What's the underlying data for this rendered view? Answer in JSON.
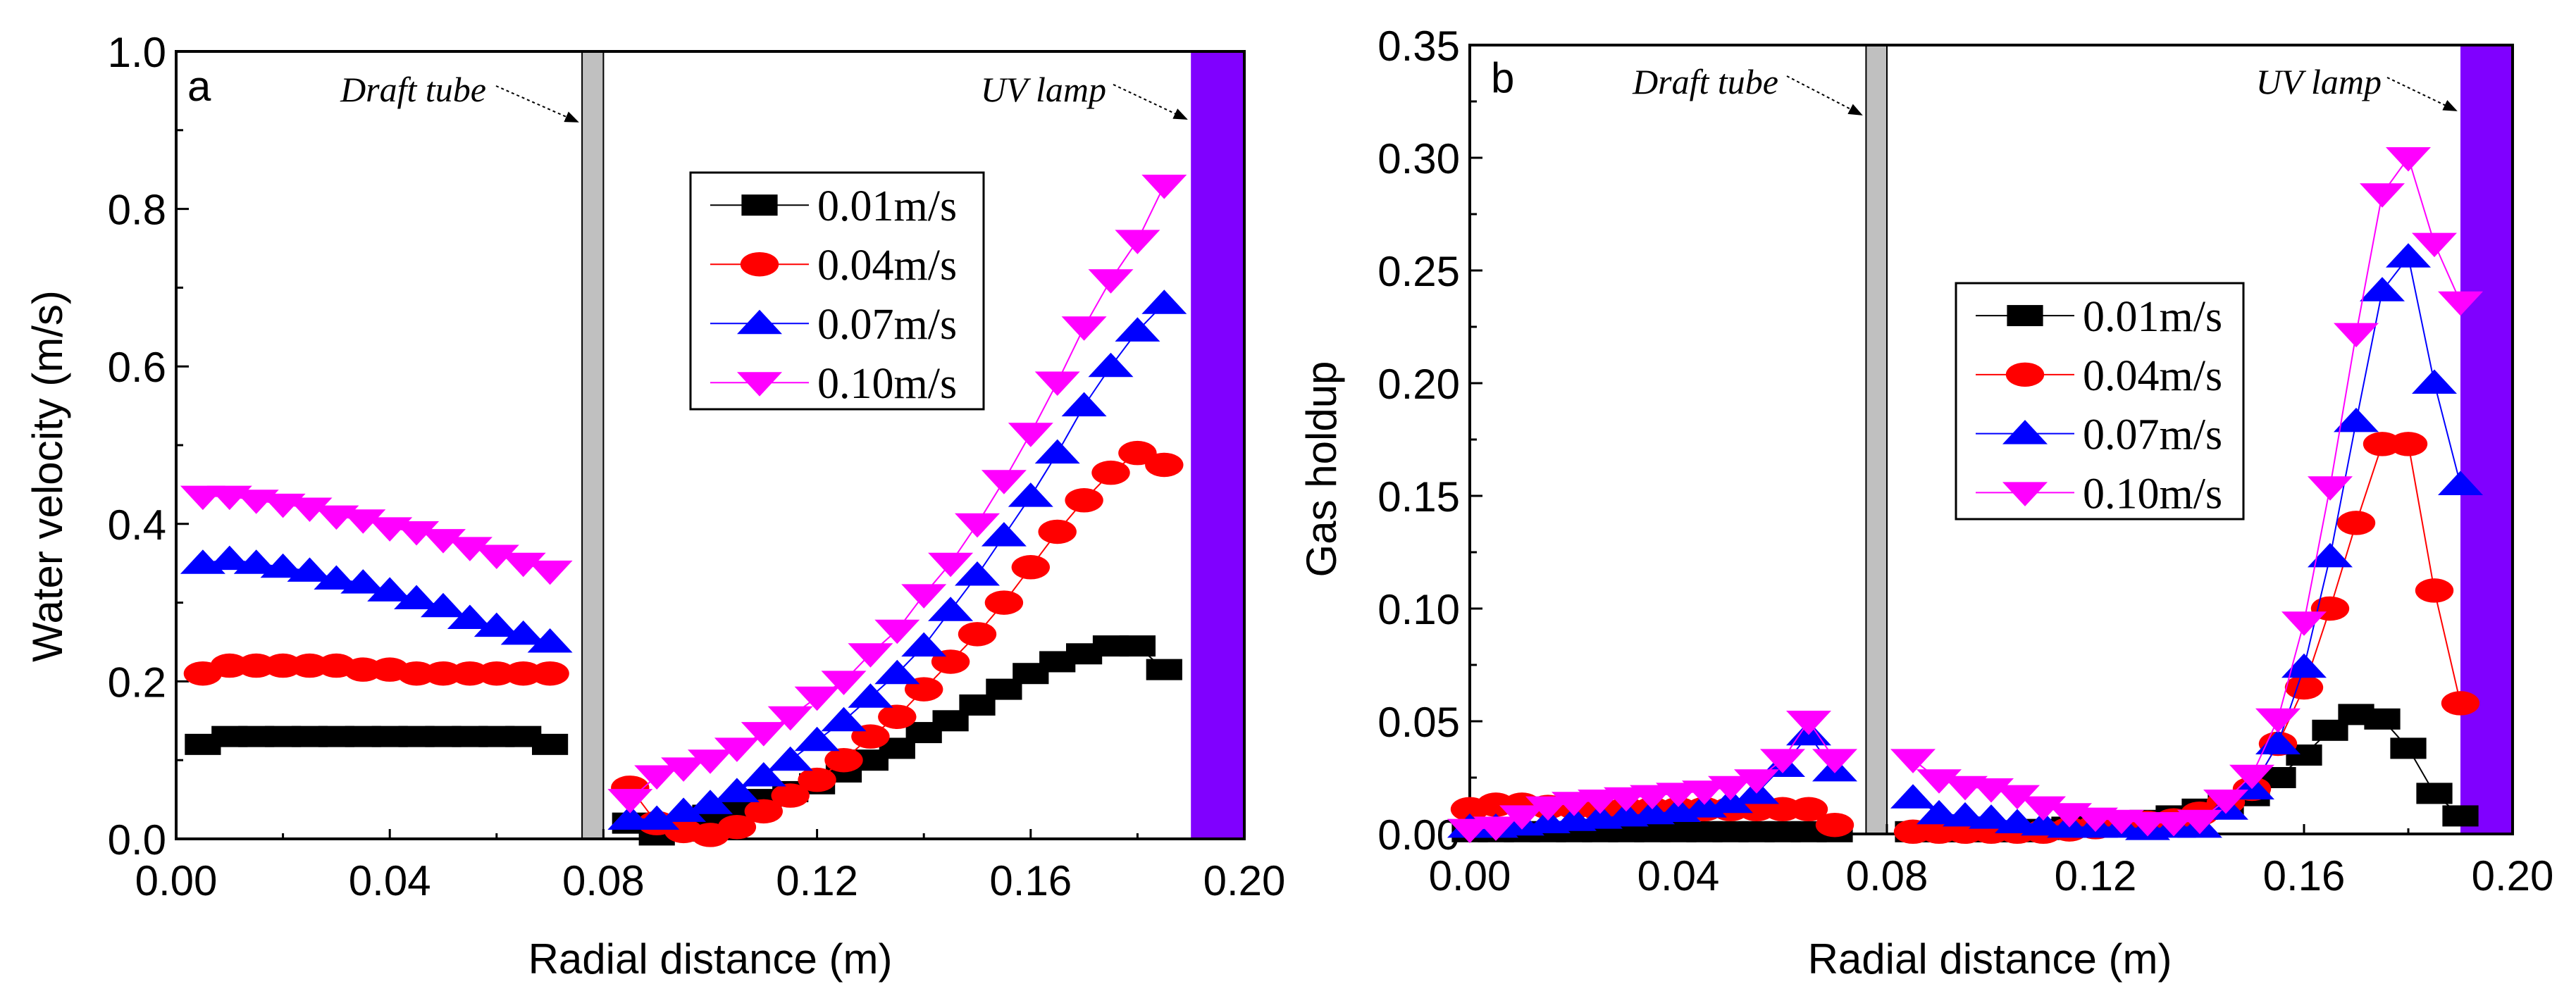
{
  "chart_data": [
    {
      "type": "scatter",
      "panel_label": "a",
      "xlabel": "Radial distance (m)",
      "ylabel": "Water velocity (m/s)",
      "xlim": [
        0,
        0.2
      ],
      "ylim": [
        0,
        1.0
      ],
      "xticks": [
        "0.00",
        "0.04",
        "0.08",
        "0.12",
        "0.16",
        "0.20"
      ],
      "yticks": [
        "0.0",
        "0.2",
        "0.4",
        "0.6",
        "0.8",
        "1.0"
      ],
      "annotations": [
        "Draft tube",
        "UV lamp"
      ],
      "draft_tube": [
        0.076,
        0.08
      ],
      "uv_lamp": [
        0.19,
        0.2
      ],
      "legend_position": "upper-center",
      "series": [
        {
          "name": "0.01m/s",
          "color": "#000000",
          "marker": "square",
          "segments": [
            {
              "x": [
                0.005,
                0.01,
                0.015,
                0.02,
                0.025,
                0.03,
                0.035,
                0.04,
                0.045,
                0.05,
                0.055,
                0.06,
                0.065,
                0.07
              ],
              "y": [
                0.12,
                0.13,
                0.13,
                0.13,
                0.13,
                0.13,
                0.13,
                0.13,
                0.13,
                0.13,
                0.13,
                0.13,
                0.13,
                0.12
              ]
            },
            {
              "x": [
                0.085,
                0.09,
                0.095,
                0.1,
                0.105,
                0.11,
                0.115,
                0.12,
                0.125,
                0.13,
                0.135,
                0.14,
                0.145,
                0.15,
                0.155,
                0.16,
                0.165,
                0.17,
                0.175,
                0.18,
                0.185
              ],
              "y": [
                0.02,
                0.005,
                0.01,
                0.03,
                0.04,
                0.05,
                0.06,
                0.07,
                0.085,
                0.1,
                0.115,
                0.135,
                0.15,
                0.17,
                0.19,
                0.21,
                0.225,
                0.235,
                0.245,
                0.245,
                0.215
              ]
            }
          ]
        },
        {
          "name": "0.04m/s",
          "color": "#ff0000",
          "marker": "circle",
          "segments": [
            {
              "x": [
                0.005,
                0.01,
                0.015,
                0.02,
                0.025,
                0.03,
                0.035,
                0.04,
                0.045,
                0.05,
                0.055,
                0.06,
                0.065,
                0.07
              ],
              "y": [
                0.21,
                0.22,
                0.22,
                0.22,
                0.22,
                0.22,
                0.215,
                0.215,
                0.21,
                0.21,
                0.21,
                0.21,
                0.21,
                0.21
              ]
            },
            {
              "x": [
                0.085,
                0.09,
                0.095,
                0.1,
                0.105,
                0.11,
                0.115,
                0.12,
                0.125,
                0.13,
                0.135,
                0.14,
                0.145,
                0.15,
                0.155,
                0.16,
                0.165,
                0.17,
                0.175,
                0.18,
                0.185
              ],
              "y": [
                0.065,
                0.02,
                0.01,
                0.005,
                0.015,
                0.035,
                0.055,
                0.075,
                0.1,
                0.13,
                0.155,
                0.19,
                0.225,
                0.26,
                0.3,
                0.345,
                0.39,
                0.43,
                0.465,
                0.49,
                0.475
              ]
            }
          ]
        },
        {
          "name": "0.07m/s",
          "color": "#0000ff",
          "marker": "triangle-up",
          "segments": [
            {
              "x": [
                0.005,
                0.01,
                0.015,
                0.02,
                0.025,
                0.03,
                0.035,
                0.04,
                0.045,
                0.05,
                0.055,
                0.06,
                0.065,
                0.07
              ],
              "y": [
                0.35,
                0.355,
                0.35,
                0.345,
                0.34,
                0.33,
                0.325,
                0.315,
                0.305,
                0.295,
                0.28,
                0.27,
                0.26,
                0.25
              ]
            },
            {
              "x": [
                0.085,
                0.09,
                0.095,
                0.1,
                0.105,
                0.11,
                0.115,
                0.12,
                0.125,
                0.13,
                0.135,
                0.14,
                0.145,
                0.15,
                0.155,
                0.16,
                0.165,
                0.17,
                0.175,
                0.18,
                0.185
              ],
              "y": [
                0.025,
                0.025,
                0.035,
                0.045,
                0.06,
                0.08,
                0.1,
                0.125,
                0.15,
                0.18,
                0.21,
                0.245,
                0.29,
                0.335,
                0.385,
                0.435,
                0.49,
                0.55,
                0.6,
                0.645,
                0.68
              ]
            }
          ]
        },
        {
          "name": "0.10m/s",
          "color": "#ff00ff",
          "marker": "triangle-down",
          "segments": [
            {
              "x": [
                0.005,
                0.01,
                0.015,
                0.02,
                0.025,
                0.03,
                0.035,
                0.04,
                0.045,
                0.05,
                0.055,
                0.06,
                0.065,
                0.07
              ],
              "y": [
                0.435,
                0.435,
                0.43,
                0.425,
                0.42,
                0.41,
                0.405,
                0.395,
                0.39,
                0.38,
                0.37,
                0.36,
                0.35,
                0.34
              ]
            },
            {
              "x": [
                0.085,
                0.09,
                0.095,
                0.1,
                0.105,
                0.11,
                0.115,
                0.12,
                0.125,
                0.13,
                0.135,
                0.14,
                0.145,
                0.15,
                0.155,
                0.16,
                0.165,
                0.17,
                0.175,
                0.18,
                0.185
              ],
              "y": [
                0.05,
                0.08,
                0.09,
                0.1,
                0.115,
                0.135,
                0.155,
                0.18,
                0.2,
                0.235,
                0.265,
                0.31,
                0.35,
                0.4,
                0.455,
                0.515,
                0.58,
                0.65,
                0.71,
                0.76,
                0.83
              ]
            }
          ]
        }
      ]
    },
    {
      "type": "scatter",
      "panel_label": "b",
      "xlabel": "Radial distance (m)",
      "ylabel": "Gas holdup",
      "xlim": [
        0,
        0.2
      ],
      "ylim": [
        0,
        0.35
      ],
      "xticks": [
        "0.00",
        "0.04",
        "0.08",
        "0.12",
        "0.16",
        "0.20"
      ],
      "yticks": [
        "0.00",
        "0.05",
        "0.10",
        "0.15",
        "0.20",
        "0.25",
        "0.30",
        "0.35"
      ],
      "annotations": [
        "Draft tube",
        "UV lamp"
      ],
      "draft_tube": [
        0.076,
        0.08
      ],
      "uv_lamp": [
        0.19,
        0.2
      ],
      "legend_position": "center-right",
      "series": [
        {
          "name": "0.01m/s",
          "color": "#000000",
          "marker": "square",
          "segments": [
            {
              "x": [
                0,
                0.005,
                0.01,
                0.015,
                0.02,
                0.025,
                0.03,
                0.035,
                0.04,
                0.045,
                0.05,
                0.055,
                0.06,
                0.065,
                0.07
              ],
              "y": [
                0.001,
                0.001,
                0.001,
                0.001,
                0.001,
                0.001,
                0.001,
                0.001,
                0.001,
                0.001,
                0.001,
                0.001,
                0.001,
                0.001,
                0.001
              ]
            },
            {
              "x": [
                0.085,
                0.09,
                0.095,
                0.1,
                0.105,
                0.11,
                0.115,
                0.12,
                0.125,
                0.13,
                0.135,
                0.14,
                0.145,
                0.15,
                0.155,
                0.16,
                0.165,
                0.17,
                0.175,
                0.18,
                0.185,
                0.19
              ],
              "y": [
                0.001,
                0.001,
                0.001,
                0.001,
                0.001,
                0.002,
                0.003,
                0.004,
                0.005,
                0.006,
                0.008,
                0.011,
                0.013,
                0.017,
                0.025,
                0.035,
                0.046,
                0.053,
                0.051,
                0.038,
                0.018,
                0.008
              ]
            }
          ]
        },
        {
          "name": "0.04m/s",
          "color": "#ff0000",
          "marker": "circle",
          "segments": [
            {
              "x": [
                0,
                0.005,
                0.01,
                0.015,
                0.02,
                0.025,
                0.03,
                0.035,
                0.04,
                0.045,
                0.05,
                0.055,
                0.06,
                0.065,
                0.07
              ],
              "y": [
                0.011,
                0.013,
                0.013,
                0.012,
                0.012,
                0.011,
                0.011,
                0.011,
                0.011,
                0.011,
                0.011,
                0.011,
                0.011,
                0.011,
                0.004
              ]
            },
            {
              "x": [
                0.085,
                0.09,
                0.095,
                0.1,
                0.105,
                0.11,
                0.115,
                0.12,
                0.125,
                0.13,
                0.135,
                0.14,
                0.145,
                0.15,
                0.155,
                0.16,
                0.165,
                0.17,
                0.175,
                0.18,
                0.185,
                0.19
              ],
              "y": [
                0.001,
                0.001,
                0.001,
                0.001,
                0.001,
                0.001,
                0.002,
                0.003,
                0.004,
                0.005,
                0.006,
                0.009,
                0.014,
                0.02,
                0.04,
                0.065,
                0.1,
                0.138,
                0.173,
                0.173,
                0.108,
                0.058
              ]
            }
          ]
        },
        {
          "name": "0.07m/s",
          "color": "#0000ff",
          "marker": "triangle-up",
          "segments": [
            {
              "x": [
                0,
                0.005,
                0.01,
                0.015,
                0.02,
                0.025,
                0.03,
                0.035,
                0.04,
                0.045,
                0.05,
                0.055,
                0.06,
                0.065,
                0.07
              ],
              "y": [
                0.003,
                0.003,
                0.004,
                0.005,
                0.006,
                0.007,
                0.008,
                0.009,
                0.01,
                0.012,
                0.014,
                0.018,
                0.03,
                0.044,
                0.028
              ]
            },
            {
              "x": [
                0.085,
                0.09,
                0.095,
                0.1,
                0.105,
                0.11,
                0.115,
                0.12,
                0.125,
                0.13,
                0.135,
                0.14,
                0.145,
                0.15,
                0.155,
                0.16,
                0.165,
                0.17,
                0.175,
                0.18,
                0.185,
                0.19
              ],
              "y": [
                0.016,
                0.009,
                0.008,
                0.007,
                0.005,
                0.004,
                0.003,
                0.003,
                0.003,
                0.002,
                0.003,
                0.003,
                0.011,
                0.02,
                0.04,
                0.074,
                0.123,
                0.183,
                0.241,
                0.256,
                0.2,
                0.155
              ]
            }
          ]
        },
        {
          "name": "0.10m/s",
          "color": "#ff00ff",
          "marker": "triangle-down",
          "segments": [
            {
              "x": [
                0,
                0.005,
                0.01,
                0.015,
                0.02,
                0.025,
                0.03,
                0.035,
                0.04,
                0.045,
                0.05,
                0.055,
                0.06,
                0.065,
                0.07
              ],
              "y": [
                0.002,
                0.003,
                0.008,
                0.012,
                0.014,
                0.015,
                0.016,
                0.017,
                0.018,
                0.019,
                0.021,
                0.024,
                0.033,
                0.05,
                0.033
              ]
            },
            {
              "x": [
                0.085,
                0.09,
                0.095,
                0.1,
                0.105,
                0.11,
                0.115,
                0.12,
                0.125,
                0.13,
                0.135,
                0.14,
                0.145,
                0.15,
                0.155,
                0.16,
                0.165,
                0.17,
                0.175,
                0.18,
                0.185,
                0.19
              ],
              "y": [
                0.033,
                0.024,
                0.021,
                0.02,
                0.017,
                0.012,
                0.009,
                0.007,
                0.006,
                0.005,
                0.005,
                0.006,
                0.015,
                0.026,
                0.051,
                0.094,
                0.154,
                0.222,
                0.284,
                0.3,
                0.262,
                0.236
              ]
            }
          ]
        }
      ]
    }
  ],
  "colors": {
    "draft_tube": "#c0c0c0",
    "uv_lamp": "#8000ff"
  }
}
